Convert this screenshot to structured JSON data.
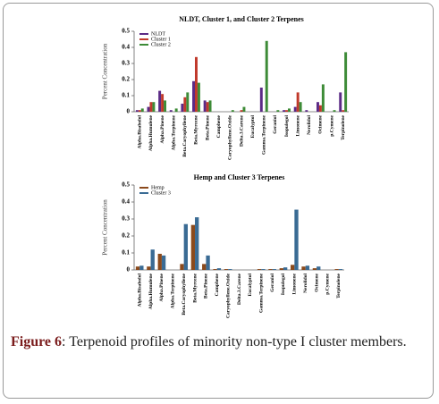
{
  "chart_data": [
    {
      "type": "bar",
      "title": "NLDT, Cluster 1, and Cluster 2 Terpenes",
      "y_label": "Percent Concentration",
      "categories": [
        "Alpha.Bisabolol",
        "Alpha.Humulene",
        "Alpha.Pinene",
        "Alpha.Terpinene",
        "Beta.Caryophyllene",
        "Beta.Myrcene",
        "Beta.Pinene",
        "Camphene",
        "Caryophyllene.Oxide",
        "Delta.3.Carene",
        "Eucalyptol",
        "Gamma.Terpinene",
        "Geraniol",
        "Isopulegol",
        "Limonene",
        "Nerolidol",
        "Ocimene",
        "p.Cymene",
        "Terpinolene"
      ],
      "series": [
        {
          "name": "NLDT",
          "color": "#5b2a86",
          "values": [
            0.01,
            0.03,
            0.13,
            0.01,
            0.05,
            0.19,
            0.07,
            0,
            0,
            0,
            0,
            0.15,
            0,
            0.01,
            0.03,
            0.01,
            0.06,
            0,
            0.12
          ]
        },
        {
          "name": "Cluster 1",
          "color": "#c0392b",
          "values": [
            0.01,
            0.06,
            0.11,
            0,
            0.09,
            0.34,
            0.06,
            0,
            0,
            0.01,
            0,
            0,
            0,
            0.01,
            0.12,
            0,
            0.04,
            0,
            0.01
          ]
        },
        {
          "name": "Cluster 2",
          "color": "#3d8b37",
          "values": [
            0.02,
            0.06,
            0.07,
            0.02,
            0.12,
            0.18,
            0.07,
            0,
            0.01,
            0.03,
            0,
            0.44,
            0.01,
            0.02,
            0.06,
            0,
            0.17,
            0.01,
            0.37
          ]
        }
      ],
      "ylim": [
        0,
        0.5
      ],
      "yticks": [
        0,
        0.1,
        0.2,
        0.3,
        0.4,
        0.5
      ],
      "legend": "upper left"
    },
    {
      "type": "bar",
      "title": "Hemp and Cluster 3 Terpenes",
      "y_label": "Percent Concentration",
      "categories": [
        "Alpha.Bisabolol",
        "Alpha.Humulene",
        "Alpha.Pinene",
        "Alpha.Terpinene",
        "Beta.Caryophyllene",
        "Beta.Myrcene",
        "Beta.Pinene",
        "Camphene",
        "Caryophyllene.Oxide",
        "Delta.3.Carene",
        "Eucalyptol",
        "Gamma.Terpinene",
        "Geraniol",
        "Isopulegol",
        "Limonene",
        "Nerolidol",
        "Ocimene",
        "p.Cymene",
        "Terpinolene"
      ],
      "series": [
        {
          "name": "Hemp",
          "color": "#8b4a1c",
          "values": [
            0.02,
            0.02,
            0.095,
            0,
            0.035,
            0.265,
            0.035,
            0.005,
            0.005,
            0,
            0,
            0.005,
            0.005,
            0.01,
            0.03,
            0.02,
            0.01,
            0,
            0.005
          ]
        },
        {
          "name": "Cluster 3",
          "color": "#3a6b94",
          "values": [
            0.025,
            0.12,
            0.085,
            0,
            0.27,
            0.31,
            0.085,
            0.01,
            0.005,
            0,
            0,
            0.005,
            0.005,
            0.015,
            0.355,
            0.025,
            0.02,
            0,
            0.005
          ]
        }
      ],
      "ylim": [
        0,
        0.5
      ],
      "yticks": [
        0,
        0.1,
        0.2,
        0.3,
        0.4,
        0.5
      ],
      "legend": "upper left"
    }
  ],
  "caption": {
    "label": "Figure 6",
    "text": ": Terpenoid profiles of minority non-type I cluster members."
  }
}
